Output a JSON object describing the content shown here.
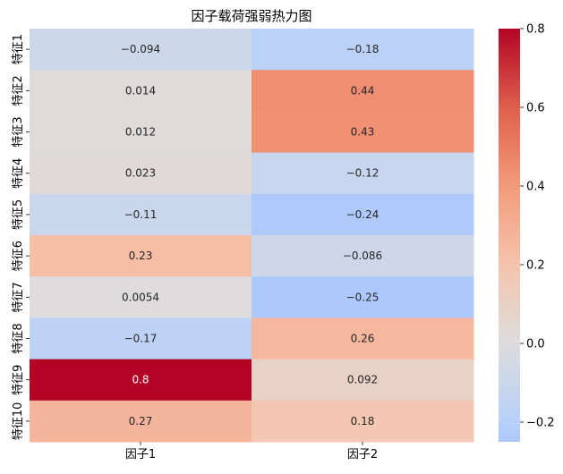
{
  "chart_data": {
    "type": "heatmap",
    "title": "因子载荷强弱热力图",
    "xlabel": "",
    "ylabel": "",
    "columns": [
      "因子1",
      "因子2"
    ],
    "rows": [
      "特征1",
      "特征2",
      "特征3",
      "特征4",
      "特征5",
      "特征6",
      "特征7",
      "特征8",
      "特征9",
      "特征10"
    ],
    "values": [
      [
        -0.094,
        -0.18
      ],
      [
        0.014,
        0.44
      ],
      [
        0.012,
        0.43
      ],
      [
        0.023,
        -0.12
      ],
      [
        -0.11,
        -0.24
      ],
      [
        0.23,
        -0.086
      ],
      [
        0.0054,
        -0.25
      ],
      [
        -0.17,
        0.26
      ],
      [
        0.8,
        0.092
      ],
      [
        0.27,
        0.18
      ]
    ],
    "cell_labels": [
      [
        "−0.094",
        "−0.18"
      ],
      [
        "0.014",
        "0.44"
      ],
      [
        "0.012",
        "0.43"
      ],
      [
        "0.023",
        "−0.12"
      ],
      [
        "−0.11",
        "−0.24"
      ],
      [
        "0.23",
        "−0.086"
      ],
      [
        "0.0054",
        "−0.25"
      ],
      [
        "−0.17",
        "0.26"
      ],
      [
        "0.8",
        "0.092"
      ],
      [
        "0.27",
        "0.18"
      ]
    ],
    "colormap": "coolwarm",
    "center": 0,
    "vmin": -0.25,
    "vmax": 0.8,
    "colorbar": {
      "ticks": [
        -0.2,
        0.0,
        0.2,
        0.4,
        0.6,
        0.8
      ],
      "tick_labels": [
        "−0.2",
        "0.0",
        "0.2",
        "0.4",
        "0.6",
        "0.8"
      ],
      "placement": "right"
    }
  }
}
